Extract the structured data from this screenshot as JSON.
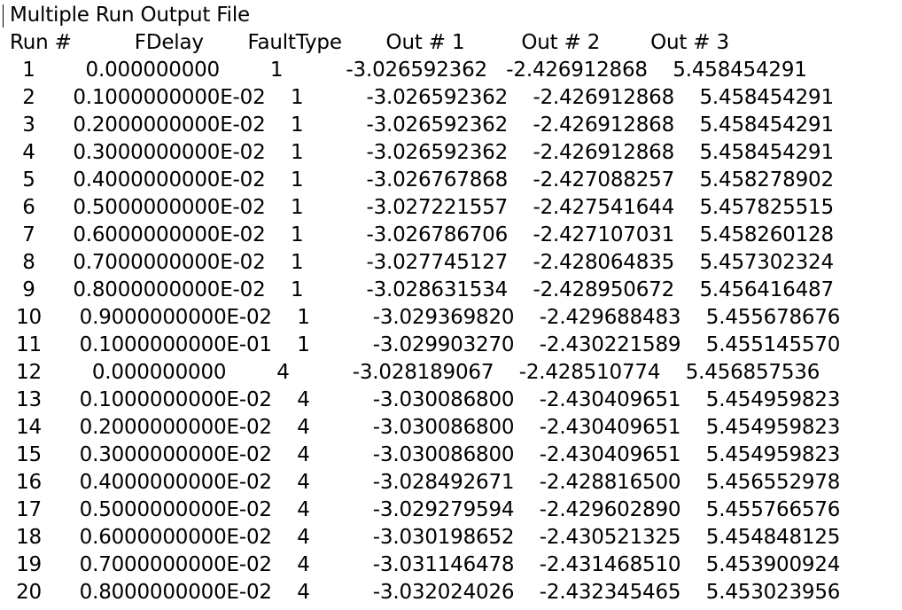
{
  "document": {
    "title": "Multiple Run Output File",
    "header": "Run #          FDelay       FaultType       Out # 1         Out # 2        Out # 3",
    "rows": [
      "  1        0.000000000        1          -3.026592362   -2.426912868    5.458454291",
      "  2      0.1000000000E-02    1          -3.026592362    -2.426912868    5.458454291",
      "  3      0.2000000000E-02    1          -3.026592362    -2.426912868    5.458454291",
      "  4      0.3000000000E-02    1          -3.026592362    -2.426912868    5.458454291",
      "  5      0.4000000000E-02    1          -3.026767868    -2.427088257    5.458278902",
      "  6      0.5000000000E-02    1          -3.027221557    -2.427541644    5.457825515",
      "  7      0.6000000000E-02    1          -3.026786706    -2.427107031    5.458260128",
      "  8      0.7000000000E-02    1          -3.027745127    -2.428064835    5.457302324",
      "  9      0.8000000000E-02    1          -3.028631534    -2.428950672    5.456416487",
      " 10      0.9000000000E-02    1          -3.029369820    -2.429688483    5.455678676",
      " 11      0.1000000000E-01    1          -3.029903270    -2.430221589    5.455145570",
      " 12        0.000000000        4          -3.028189067    -2.428510774    5.456857536",
      " 13      0.1000000000E-02    4          -3.030086800    -2.430409651    5.454959823",
      " 14      0.2000000000E-02    4          -3.030086800    -2.430409651    5.454959823",
      " 15      0.3000000000E-02    4          -3.030086800    -2.430409651    5.454959823",
      " 16      0.4000000000E-02    4          -3.028492671    -2.428816500    5.456552978",
      " 17      0.5000000000E-02    4          -3.029279594    -2.429602890    5.455766576",
      " 18      0.6000000000E-02    4          -3.030198652    -2.430521325    5.454848125",
      " 19      0.7000000000E-02    4          -3.031146478    -2.431468510    5.453900924",
      " 20      0.8000000000E-02    4          -3.032024026    -2.432345465    5.453023956"
    ]
  }
}
